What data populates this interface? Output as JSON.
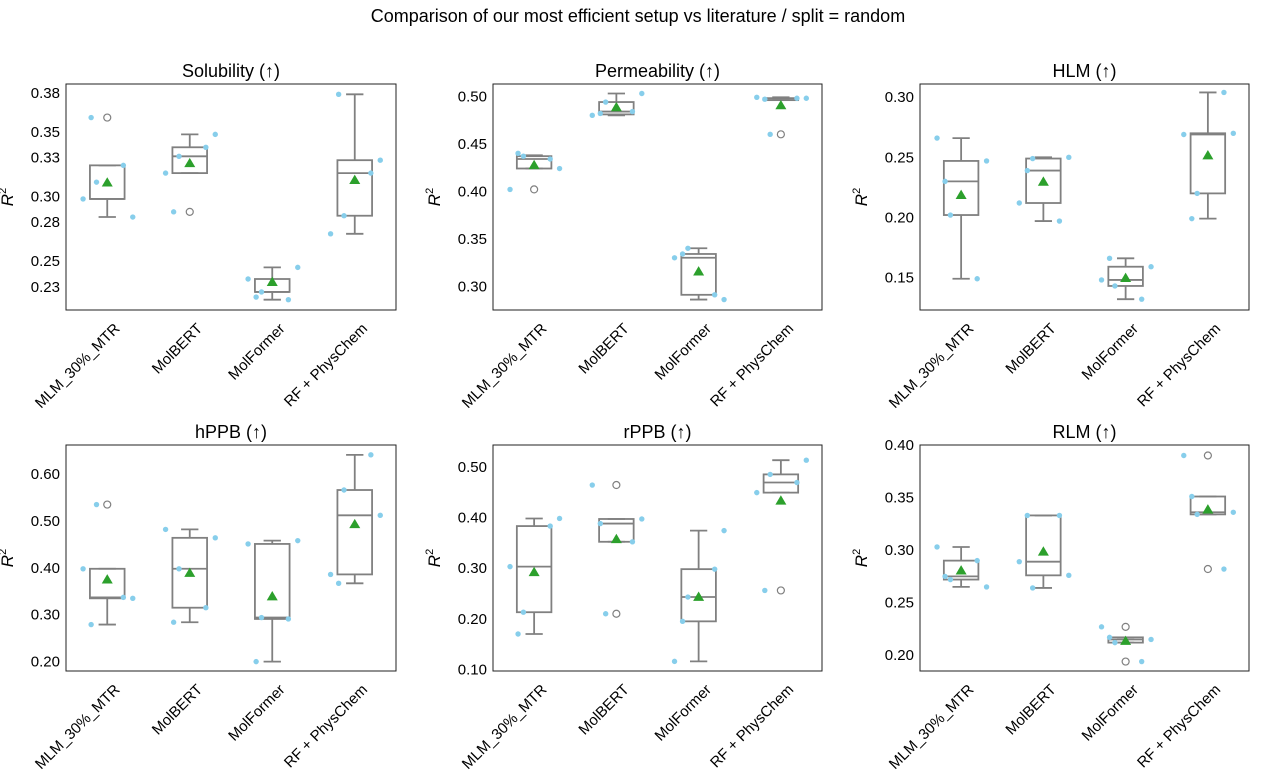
{
  "figure": {
    "title": "Comparison of our most efficient setup vs literature / split = random"
  },
  "chart_data": [
    {
      "type": "box",
      "title": "Solubility (↑)",
      "ylabel": "R",
      "ylabel_sup": "2",
      "ylim": [
        0.212,
        0.387
      ],
      "yticks": [
        0.23,
        0.25,
        0.28,
        0.3,
        0.33,
        0.35,
        0.38
      ],
      "ytick_labels": [
        "0.23",
        "0.25",
        "0.28",
        "0.30",
        "0.33",
        "0.35",
        "0.38"
      ],
      "categories": [
        "MLM_30%_MTR",
        "MolBERT",
        "MolFormer",
        "RF + PhysChem"
      ],
      "boxes": [
        {
          "whislo": 0.284,
          "q1": 0.298,
          "med": 0.298,
          "q3": 0.324,
          "whishi": 0.324,
          "mean": 0.311,
          "outliers": [
            0.361
          ],
          "points": [
            0.298,
            0.324,
            0.311,
            0.284,
            0.361
          ]
        },
        {
          "whislo": 0.318,
          "q1": 0.318,
          "med": 0.331,
          "q3": 0.338,
          "whishi": 0.348,
          "mean": 0.326,
          "outliers": [
            0.288
          ],
          "points": [
            0.318,
            0.338,
            0.331,
            0.348,
            0.288
          ]
        },
        {
          "whislo": 0.22,
          "q1": 0.226,
          "med": 0.226,
          "q3": 0.236,
          "whishi": 0.245,
          "mean": 0.234,
          "outliers": [],
          "points": [
            0.236,
            0.22,
            0.226,
            0.245,
            0.222
          ]
        },
        {
          "whislo": 0.271,
          "q1": 0.285,
          "med": 0.318,
          "q3": 0.328,
          "whishi": 0.379,
          "mean": 0.313,
          "outliers": [],
          "points": [
            0.271,
            0.318,
            0.285,
            0.328,
            0.379
          ]
        }
      ]
    },
    {
      "type": "box",
      "title": "Permeability (↑)",
      "ylabel": "R",
      "ylabel_sup": "2",
      "ylim": [
        0.275,
        0.513
      ],
      "yticks": [
        0.3,
        0.35,
        0.4,
        0.45,
        0.5
      ],
      "ytick_labels": [
        "0.30",
        "0.35",
        "0.40",
        "0.45",
        "0.50"
      ],
      "categories": [
        "MLM_30%_MTR",
        "MolBERT",
        "MolFormer",
        "RF + PhysChem"
      ],
      "boxes": [
        {
          "whislo": 0.424,
          "q1": 0.424,
          "med": 0.434,
          "q3": 0.437,
          "whishi": 0.438,
          "mean": 0.428,
          "outliers": [
            0.402
          ],
          "points": [
            0.402,
            0.434,
            0.437,
            0.424,
            0.44
          ]
        },
        {
          "whislo": 0.48,
          "q1": 0.481,
          "med": 0.484,
          "q3": 0.494,
          "whishi": 0.503,
          "mean": 0.489,
          "outliers": [],
          "points": [
            0.48,
            0.484,
            0.494,
            0.503,
            0.482
          ]
        },
        {
          "whislo": 0.286,
          "q1": 0.291,
          "med": 0.33,
          "q3": 0.334,
          "whishi": 0.34,
          "mean": 0.316,
          "outliers": [],
          "points": [
            0.33,
            0.291,
            0.34,
            0.286,
            0.334
          ]
        },
        {
          "whislo": 0.496,
          "q1": 0.496,
          "med": 0.498,
          "q3": 0.498,
          "whishi": 0.499,
          "mean": 0.491,
          "outliers": [
            0.46
          ],
          "points": [
            0.499,
            0.498,
            0.46,
            0.498,
            0.497
          ]
        }
      ]
    },
    {
      "type": "box",
      "title": "HLM (↑)",
      "ylabel": "R",
      "ylabel_sup": "2",
      "ylim": [
        0.123,
        0.311
      ],
      "yticks": [
        0.15,
        0.2,
        0.25,
        0.3
      ],
      "ytick_labels": [
        "0.15",
        "0.20",
        "0.25",
        "0.30"
      ],
      "categories": [
        "MLM_30%_MTR",
        "MolBERT",
        "MolFormer",
        "RF + PhysChem"
      ],
      "boxes": [
        {
          "whislo": 0.149,
          "q1": 0.202,
          "med": 0.23,
          "q3": 0.247,
          "whishi": 0.266,
          "mean": 0.219,
          "outliers": [],
          "points": [
            0.266,
            0.149,
            0.202,
            0.247,
            0.23
          ]
        },
        {
          "whislo": 0.197,
          "q1": 0.212,
          "med": 0.239,
          "q3": 0.249,
          "whishi": 0.25,
          "mean": 0.23,
          "outliers": [],
          "points": [
            0.212,
            0.197,
            0.249,
            0.25,
            0.239
          ]
        },
        {
          "whislo": 0.132,
          "q1": 0.143,
          "med": 0.148,
          "q3": 0.159,
          "whishi": 0.166,
          "mean": 0.15,
          "outliers": [],
          "points": [
            0.148,
            0.132,
            0.143,
            0.159,
            0.166
          ]
        },
        {
          "whislo": 0.199,
          "q1": 0.22,
          "med": 0.269,
          "q3": 0.27,
          "whishi": 0.304,
          "mean": 0.252,
          "outliers": [],
          "points": [
            0.269,
            0.304,
            0.22,
            0.27,
            0.199
          ]
        }
      ]
    },
    {
      "type": "box",
      "title": "hPPB (↑)",
      "ylabel": "R",
      "ylabel_sup": "2",
      "ylim": [
        0.18,
        0.662
      ],
      "yticks": [
        0.2,
        0.3,
        0.4,
        0.5,
        0.6
      ],
      "ytick_labels": [
        "0.20",
        "0.30",
        "0.40",
        "0.50",
        "0.60"
      ],
      "categories": [
        "MLM_30%_MTR",
        "MolBERT",
        "MolFormer",
        "RF + PhysChem"
      ],
      "boxes": [
        {
          "whislo": 0.279,
          "q1": 0.335,
          "med": 0.337,
          "q3": 0.398,
          "whishi": 0.398,
          "mean": 0.376,
          "outliers": [
            0.535
          ],
          "points": [
            0.398,
            0.337,
            0.535,
            0.335,
            0.279
          ]
        },
        {
          "whislo": 0.284,
          "q1": 0.315,
          "med": 0.398,
          "q3": 0.464,
          "whishi": 0.482,
          "mean": 0.39,
          "outliers": [],
          "points": [
            0.482,
            0.315,
            0.398,
            0.464,
            0.284
          ]
        },
        {
          "whislo": 0.2,
          "q1": 0.291,
          "med": 0.294,
          "q3": 0.451,
          "whishi": 0.458,
          "mean": 0.34,
          "outliers": [],
          "points": [
            0.451,
            0.291,
            0.294,
            0.458,
            0.2
          ]
        },
        {
          "whislo": 0.367,
          "q1": 0.386,
          "med": 0.512,
          "q3": 0.566,
          "whishi": 0.641,
          "mean": 0.494,
          "outliers": [],
          "points": [
            0.386,
            0.641,
            0.566,
            0.512,
            0.367
          ]
        }
      ]
    },
    {
      "type": "box",
      "title": "rPPB (↑)",
      "ylabel": "R",
      "ylabel_sup": "2",
      "ylim": [
        0.097,
        0.543
      ],
      "yticks": [
        0.1,
        0.2,
        0.3,
        0.4,
        0.5
      ],
      "ytick_labels": [
        "0.10",
        "0.20",
        "0.30",
        "0.40",
        "0.50"
      ],
      "categories": [
        "MLM_30%_MTR",
        "MolBERT",
        "MolFormer",
        "RF + PhysChem"
      ],
      "boxes": [
        {
          "whislo": 0.17,
          "q1": 0.213,
          "med": 0.303,
          "q3": 0.383,
          "whishi": 0.398,
          "mean": 0.293,
          "outliers": [],
          "points": [
            0.303,
            0.383,
            0.213,
            0.398,
            0.17
          ]
        },
        {
          "whislo": 0.352,
          "q1": 0.352,
          "med": 0.388,
          "q3": 0.397,
          "whishi": 0.397,
          "mean": 0.358,
          "outliers": [
            0.464,
            0.21
          ],
          "points": [
            0.464,
            0.352,
            0.21,
            0.397,
            0.388
          ]
        },
        {
          "whislo": 0.116,
          "q1": 0.195,
          "med": 0.243,
          "q3": 0.298,
          "whishi": 0.374,
          "mean": 0.244,
          "outliers": [],
          "points": [
            0.116,
            0.298,
            0.243,
            0.374,
            0.195
          ]
        },
        {
          "whislo": 0.449,
          "q1": 0.449,
          "med": 0.469,
          "q3": 0.485,
          "whishi": 0.513,
          "mean": 0.434,
          "outliers": [
            0.256
          ],
          "points": [
            0.449,
            0.469,
            0.485,
            0.513,
            0.256
          ]
        }
      ]
    },
    {
      "type": "box",
      "title": "RLM (↑)",
      "ylabel": "R",
      "ylabel_sup": "2",
      "ylim": [
        0.185,
        0.4
      ],
      "yticks": [
        0.2,
        0.25,
        0.3,
        0.35,
        0.4
      ],
      "ytick_labels": [
        "0.20",
        "0.25",
        "0.30",
        "0.35",
        "0.40"
      ],
      "categories": [
        "MLM_30%_MTR",
        "MolBERT",
        "MolFormer",
        "RF + PhysChem"
      ],
      "boxes": [
        {
          "whislo": 0.265,
          "q1": 0.272,
          "med": 0.275,
          "q3": 0.29,
          "whishi": 0.303,
          "mean": 0.281,
          "outliers": [],
          "points": [
            0.303,
            0.29,
            0.272,
            0.265,
            0.275
          ]
        },
        {
          "whislo": 0.264,
          "q1": 0.276,
          "med": 0.289,
          "q3": 0.333,
          "whishi": 0.333,
          "mean": 0.299,
          "outliers": [],
          "points": [
            0.289,
            0.333,
            0.264,
            0.276,
            0.333
          ]
        },
        {
          "whislo": 0.212,
          "q1": 0.212,
          "med": 0.215,
          "q3": 0.217,
          "whishi": 0.217,
          "mean": 0.214,
          "outliers": [
            0.227,
            0.194
          ],
          "points": [
            0.227,
            0.194,
            0.212,
            0.215,
            0.217
          ]
        },
        {
          "whislo": 0.334,
          "q1": 0.334,
          "med": 0.336,
          "q3": 0.351,
          "whishi": 0.351,
          "mean": 0.339,
          "outliers": [
            0.39,
            0.282
          ],
          "points": [
            0.39,
            0.282,
            0.334,
            0.336,
            0.351
          ]
        }
      ]
    }
  ],
  "colors": {
    "box": "#808080",
    "points": "#87ceeb",
    "mean": "#2ca02c",
    "frame": "#222222"
  }
}
